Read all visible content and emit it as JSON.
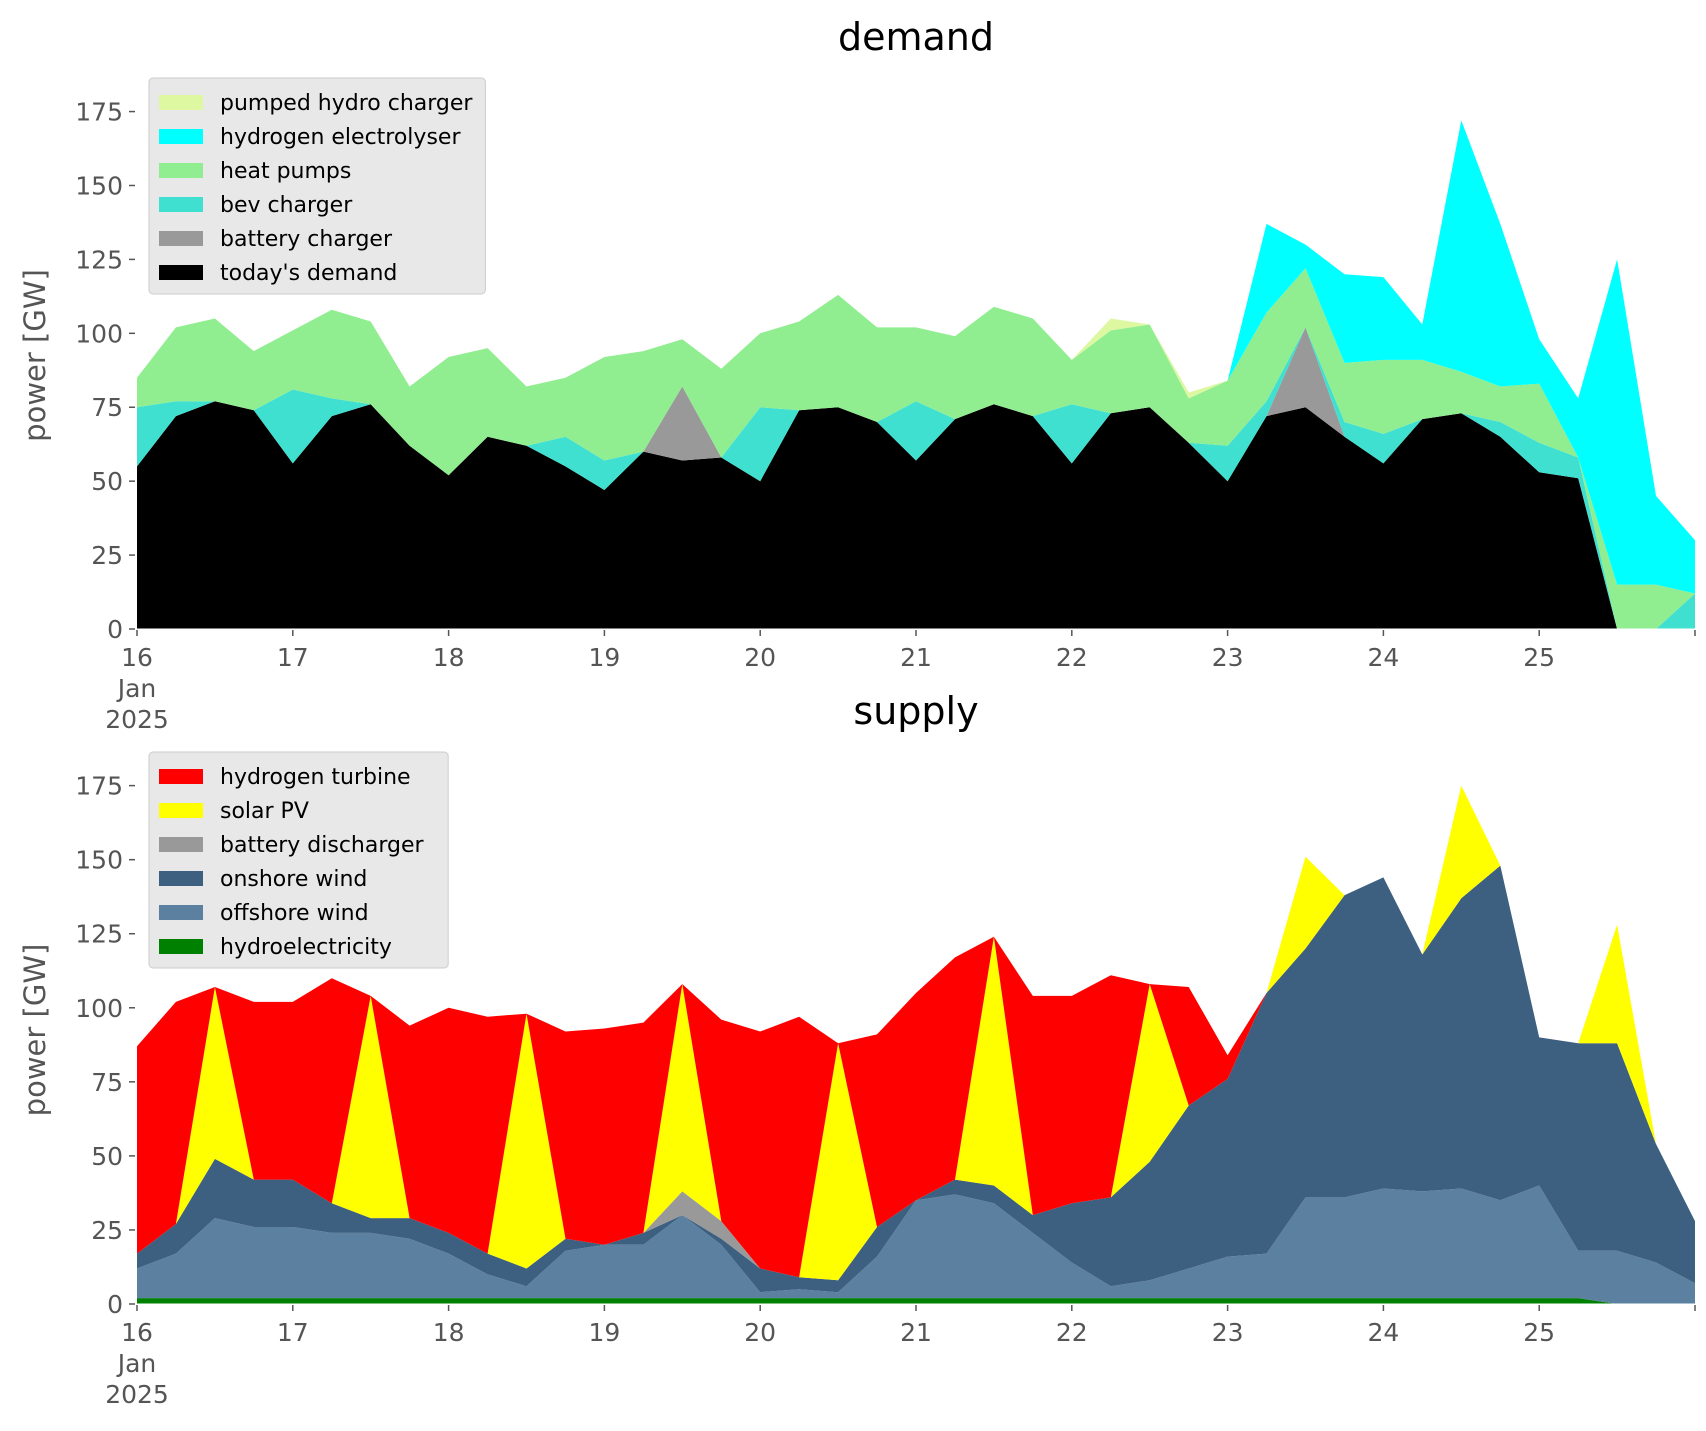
{
  "chart_data": [
    {
      "type": "area",
      "stacked": true,
      "title": "demand",
      "xlabel": "",
      "ylabel": "power [GW]",
      "ylim": [
        0,
        185
      ],
      "yticks": [
        0,
        25,
        50,
        75,
        100,
        125,
        150,
        175
      ],
      "xlim": [
        "2025-01-16",
        "2025-01-26"
      ],
      "xticks": [
        {
          "x": "2025-01-16",
          "label": "16",
          "sublabel": [
            "Jan",
            "2025"
          ]
        },
        {
          "x": "2025-01-17",
          "label": "17"
        },
        {
          "x": "2025-01-18",
          "label": "18"
        },
        {
          "x": "2025-01-19",
          "label": "19"
        },
        {
          "x": "2025-01-20",
          "label": "20"
        },
        {
          "x": "2025-01-21",
          "label": "21"
        },
        {
          "x": "2025-01-22",
          "label": "22"
        },
        {
          "x": "2025-01-23",
          "label": "23"
        },
        {
          "x": "2025-01-24",
          "label": "24"
        },
        {
          "x": "2025-01-25",
          "label": "25"
        }
      ],
      "grid": false,
      "legend_position": "top-left",
      "x": [
        "2025-01-16 00:00",
        "2025-01-16 06:00",
        "2025-01-16 12:00",
        "2025-01-16 18:00",
        "2025-01-17 00:00",
        "2025-01-17 06:00",
        "2025-01-17 12:00",
        "2025-01-17 18:00",
        "2025-01-18 00:00",
        "2025-01-18 06:00",
        "2025-01-18 12:00",
        "2025-01-18 18:00",
        "2025-01-19 00:00",
        "2025-01-19 06:00",
        "2025-01-19 12:00",
        "2025-01-19 18:00",
        "2025-01-20 00:00",
        "2025-01-20 06:00",
        "2025-01-20 12:00",
        "2025-01-20 18:00",
        "2025-01-21 00:00",
        "2025-01-21 06:00",
        "2025-01-21 12:00",
        "2025-01-21 18:00",
        "2025-01-22 00:00",
        "2025-01-22 06:00",
        "2025-01-22 12:00",
        "2025-01-22 18:00",
        "2025-01-23 00:00",
        "2025-01-23 06:00",
        "2025-01-23 12:00",
        "2025-01-23 18:00",
        "2025-01-24 00:00",
        "2025-01-24 06:00",
        "2025-01-24 12:00",
        "2025-01-24 18:00",
        "2025-01-25 00:00",
        "2025-01-25 06:00",
        "2025-01-25 12:00",
        "2025-01-25 18:00",
        "2025-01-26 00:00"
      ],
      "series": [
        {
          "name": "today's demand",
          "color": "#000000",
          "values": [
            55,
            72,
            77,
            74,
            56,
            72,
            76,
            62,
            52,
            65,
            62,
            55,
            47,
            60,
            57,
            58,
            50,
            74,
            75,
            70,
            57,
            71,
            76,
            72,
            56,
            73,
            75,
            63,
            50,
            72,
            75,
            65,
            56,
            71,
            73,
            65,
            53,
            51,
            0,
            0,
            0
          ]
        },
        {
          "name": "battery charger",
          "color": "#999999",
          "values": [
            0,
            0,
            0,
            0,
            0,
            0,
            0,
            0,
            0,
            0,
            0,
            0,
            0,
            0,
            25,
            0,
            0,
            0,
            0,
            0,
            0,
            0,
            0,
            0,
            0,
            0,
            0,
            0,
            0,
            0,
            27,
            0,
            0,
            0,
            0,
            0,
            0,
            0,
            0,
            0,
            0
          ]
        },
        {
          "name": "bev charger",
          "color": "#40e0d0",
          "values": [
            20,
            5,
            0,
            0,
            25,
            6,
            0,
            0,
            0,
            0,
            0,
            10,
            10,
            0,
            0,
            0,
            25,
            0,
            0,
            0,
            20,
            0,
            0,
            0,
            20,
            0,
            0,
            0,
            12,
            5,
            0,
            5,
            10,
            0,
            0,
            5,
            10,
            7,
            0,
            0,
            12
          ]
        },
        {
          "name": "heat pumps",
          "color": "#90ee90",
          "values": [
            10,
            25,
            28,
            20,
            20,
            30,
            28,
            20,
            40,
            30,
            20,
            20,
            35,
            34,
            16,
            30,
            25,
            30,
            38,
            32,
            25,
            28,
            33,
            33,
            15,
            28,
            28,
            15,
            22,
            30,
            20,
            20,
            25,
            20,
            14,
            12,
            20,
            0,
            15,
            15,
            0
          ]
        },
        {
          "name": "hydrogen electrolyser",
          "color": "#00ffff",
          "values": [
            0,
            0,
            0,
            0,
            0,
            0,
            0,
            0,
            0,
            0,
            0,
            0,
            0,
            0,
            0,
            0,
            0,
            0,
            0,
            0,
            0,
            0,
            0,
            0,
            0,
            0,
            0,
            0,
            0,
            30,
            8,
            30,
            28,
            12,
            85,
            55,
            15,
            20,
            110,
            30,
            18
          ]
        },
        {
          "name": "pumped hydro charger",
          "color": "#ddf8a0",
          "values": [
            0,
            0,
            0,
            0,
            0,
            0,
            0,
            0,
            0,
            0,
            0,
            0,
            0,
            0,
            0,
            0,
            0,
            0,
            0,
            0,
            0,
            0,
            0,
            0,
            0,
            4,
            0,
            2,
            0,
            0,
            0,
            0,
            0,
            0,
            0,
            0,
            0,
            0,
            0,
            0,
            0
          ]
        }
      ]
    },
    {
      "type": "area",
      "stacked": true,
      "title": "supply",
      "xlabel": "",
      "ylabel": "power [GW]",
      "ylim": [
        0,
        185
      ],
      "yticks": [
        0,
        25,
        50,
        75,
        100,
        125,
        150,
        175
      ],
      "xlim": [
        "2025-01-16",
        "2025-01-26"
      ],
      "xticks": [
        {
          "x": "2025-01-16",
          "label": "16",
          "sublabel": [
            "Jan",
            "2025"
          ]
        },
        {
          "x": "2025-01-17",
          "label": "17"
        },
        {
          "x": "2025-01-18",
          "label": "18"
        },
        {
          "x": "2025-01-19",
          "label": "19"
        },
        {
          "x": "2025-01-20",
          "label": "20"
        },
        {
          "x": "2025-01-21",
          "label": "21"
        },
        {
          "x": "2025-01-22",
          "label": "22"
        },
        {
          "x": "2025-01-23",
          "label": "23"
        },
        {
          "x": "2025-01-24",
          "label": "24"
        },
        {
          "x": "2025-01-25",
          "label": "25"
        }
      ],
      "grid": false,
      "legend_position": "top-left",
      "x": [
        "2025-01-16 00:00",
        "2025-01-16 06:00",
        "2025-01-16 12:00",
        "2025-01-16 18:00",
        "2025-01-17 00:00",
        "2025-01-17 06:00",
        "2025-01-17 12:00",
        "2025-01-17 18:00",
        "2025-01-18 00:00",
        "2025-01-18 06:00",
        "2025-01-18 12:00",
        "2025-01-18 18:00",
        "2025-01-19 00:00",
        "2025-01-19 06:00",
        "2025-01-19 12:00",
        "2025-01-19 18:00",
        "2025-01-20 00:00",
        "2025-01-20 06:00",
        "2025-01-20 12:00",
        "2025-01-20 18:00",
        "2025-01-21 00:00",
        "2025-01-21 06:00",
        "2025-01-21 12:00",
        "2025-01-21 18:00",
        "2025-01-22 00:00",
        "2025-01-22 06:00",
        "2025-01-22 12:00",
        "2025-01-22 18:00",
        "2025-01-23 00:00",
        "2025-01-23 06:00",
        "2025-01-23 12:00",
        "2025-01-23 18:00",
        "2025-01-24 00:00",
        "2025-01-24 06:00",
        "2025-01-24 12:00",
        "2025-01-24 18:00",
        "2025-01-25 00:00",
        "2025-01-25 06:00",
        "2025-01-25 12:00",
        "2025-01-25 18:00",
        "2025-01-26 00:00"
      ],
      "series": [
        {
          "name": "hydroelectricity",
          "color": "#008000",
          "values": [
            2,
            2,
            2,
            2,
            2,
            2,
            2,
            2,
            2,
            2,
            2,
            2,
            2,
            2,
            2,
            2,
            2,
            2,
            2,
            2,
            2,
            2,
            2,
            2,
            2,
            2,
            2,
            2,
            2,
            2,
            2,
            2,
            2,
            2,
            2,
            2,
            2,
            2,
            0,
            0,
            0
          ]
        },
        {
          "name": "offshore wind",
          "color": "#5b80a0",
          "values": [
            10,
            15,
            27,
            24,
            24,
            22,
            22,
            20,
            15,
            8,
            4,
            16,
            18,
            18,
            28,
            18,
            2,
            3,
            2,
            14,
            33,
            35,
            32,
            22,
            12,
            4,
            6,
            10,
            14,
            15,
            34,
            34,
            37,
            36,
            37,
            33,
            38,
            16,
            18,
            14,
            7
          ]
        },
        {
          "name": "onshore wind",
          "color": "#3d6080",
          "values": [
            5,
            10,
            20,
            16,
            16,
            10,
            5,
            7,
            7,
            7,
            6,
            4,
            0,
            4,
            0,
            2,
            8,
            4,
            4,
            10,
            0,
            5,
            6,
            6,
            20,
            30,
            40,
            55,
            60,
            88,
            84,
            102,
            105,
            80,
            98,
            113,
            50,
            70,
            70,
            40,
            21
          ]
        },
        {
          "name": "battery discharger",
          "color": "#999999",
          "values": [
            0,
            0,
            0,
            0,
            0,
            0,
            0,
            0,
            0,
            0,
            0,
            0,
            0,
            0,
            8,
            6,
            0,
            0,
            0,
            0,
            0,
            0,
            0,
            0,
            0,
            0,
            0,
            0,
            0,
            0,
            0,
            0,
            0,
            0,
            0,
            0,
            0,
            0,
            0,
            0,
            0
          ]
        },
        {
          "name": "solar PV",
          "color": "#ffff00",
          "values": [
            0,
            0,
            58,
            0,
            0,
            0,
            75,
            0,
            0,
            0,
            86,
            0,
            0,
            0,
            70,
            0,
            0,
            0,
            80,
            0,
            0,
            0,
            84,
            0,
            0,
            0,
            60,
            0,
            0,
            0,
            31,
            0,
            0,
            0,
            38,
            0,
            0,
            0,
            40,
            0,
            0
          ]
        },
        {
          "name": "hydrogen turbine",
          "color": "#ff0000",
          "values": [
            70,
            75,
            0,
            60,
            60,
            76,
            0,
            65,
            76,
            80,
            0,
            70,
            73,
            71,
            0,
            68,
            80,
            88,
            0,
            65,
            70,
            75,
            0,
            74,
            70,
            75,
            0,
            40,
            8,
            0,
            0,
            0,
            0,
            0,
            0,
            0,
            0,
            0,
            0,
            0,
            0
          ]
        }
      ]
    }
  ]
}
